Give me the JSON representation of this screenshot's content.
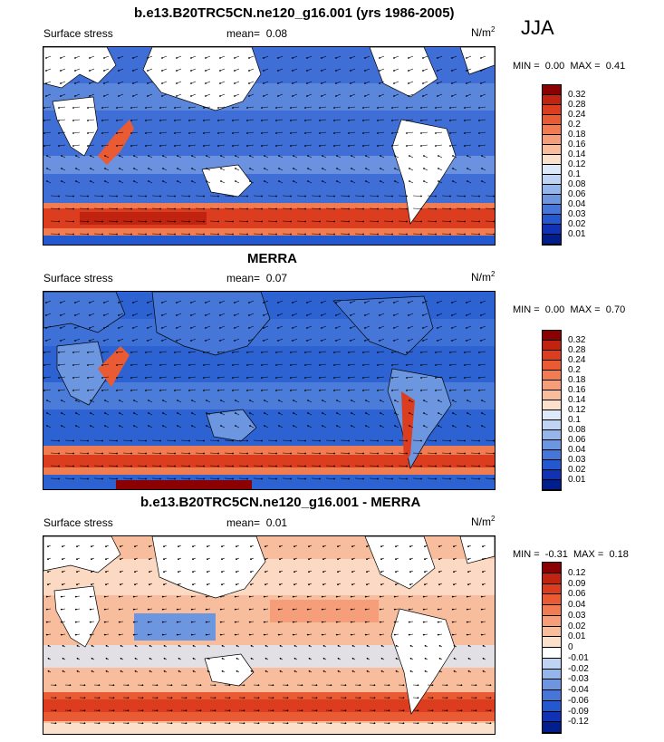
{
  "season": "JJA",
  "panels": [
    {
      "title": "b.e13.B20TRC5CN.ne120_g16.001 (yrs 1986-2005)",
      "variable": "Surface stress",
      "mean_label": "mean=",
      "mean_value": "0.08",
      "units": "N/m",
      "units_exp": "2",
      "min_label": "MIN =",
      "min_value": "0.00",
      "max_label": "MAX =",
      "max_value": "0.41",
      "colorbar_ticks": [
        "0.32",
        "0.28",
        "0.24",
        "0.2",
        "0.18",
        "0.16",
        "0.14",
        "0.12",
        "0.1",
        "0.08",
        "0.06",
        "0.04",
        "0.03",
        "0.02",
        "0.01"
      ],
      "colorbar_colors": [
        "#8b0000",
        "#c0230f",
        "#dc3d1e",
        "#ea5a33",
        "#f27c52",
        "#f59e79",
        "#f7bd9c",
        "#fbe0cc",
        "#dde9f8",
        "#bfd4f2",
        "#95b6ea",
        "#6c96e0",
        "#4677d8",
        "#2458cf",
        "#1033b5",
        "#001e8c"
      ]
    },
    {
      "title": "MERRA",
      "variable": "Surface stress",
      "mean_label": "mean=",
      "mean_value": "0.07",
      "units": "N/m",
      "units_exp": "2",
      "min_label": "MIN =",
      "min_value": "0.00",
      "max_label": "MAX =",
      "max_value": "0.70",
      "colorbar_ticks": [
        "0.32",
        "0.28",
        "0.24",
        "0.2",
        "0.18",
        "0.16",
        "0.14",
        "0.12",
        "0.1",
        "0.08",
        "0.06",
        "0.04",
        "0.03",
        "0.02",
        "0.01"
      ],
      "colorbar_colors": [
        "#8b0000",
        "#c0230f",
        "#dc3d1e",
        "#ea5a33",
        "#f27c52",
        "#f59e79",
        "#f7bd9c",
        "#fbe0cc",
        "#dde9f8",
        "#bfd4f2",
        "#95b6ea",
        "#6c96e0",
        "#4677d8",
        "#2458cf",
        "#1033b5",
        "#001e8c"
      ]
    },
    {
      "title": "b.e13.B20TRC5CN.ne120_g16.001 - MERRA",
      "variable": "Surface stress",
      "mean_label": "mean=",
      "mean_value": "0.01",
      "units": "N/m",
      "units_exp": "2",
      "min_label": "MIN =",
      "min_value": "-0.31",
      "max_label": "MAX =",
      "max_value": "0.18",
      "colorbar_ticks": [
        "0.12",
        "0.09",
        "0.06",
        "0.04",
        "0.03",
        "0.02",
        "0.01",
        "0",
        "-0.01",
        "-0.02",
        "-0.03",
        "-0.04",
        "-0.06",
        "-0.09",
        "-0.12"
      ],
      "colorbar_colors": [
        "#8b0000",
        "#c0230f",
        "#dc3d1e",
        "#ea5a33",
        "#f27c52",
        "#f59e79",
        "#f7bd9c",
        "#fbe0cc",
        "#ffffff",
        "#bfd4f2",
        "#95b6ea",
        "#6c96e0",
        "#4677d8",
        "#2458cf",
        "#1033b5",
        "#001e8c"
      ]
    }
  ]
}
